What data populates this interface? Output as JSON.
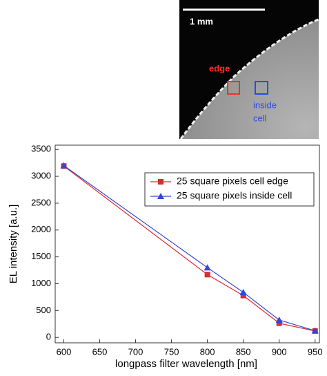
{
  "chart_data": {
    "type": "line",
    "annotations": [
      "1 mm",
      "edge",
      "inside",
      "cell"
    ],
    "x_label": "longpass filter wavelength [nm]",
    "y_label": "EL intensity [a.u.]",
    "x": [
      600,
      800,
      850,
      900,
      950
    ],
    "series": [
      {
        "name": "25 square pixels cell edge",
        "color": "#e0282d",
        "marker": "square",
        "values": [
          3190,
          1170,
          780,
          265,
          120
        ]
      },
      {
        "name": "25 square pixels inside cell",
        "color": "#3446d4",
        "marker": "triangle",
        "values": [
          3200,
          1300,
          840,
          325,
          125
        ]
      }
    ],
    "xlim": [
      588,
      956
    ],
    "ylim": [
      -100,
      3580
    ],
    "xticks": [
      600,
      650,
      700,
      750,
      800,
      850,
      900,
      950
    ],
    "yticks": [
      0,
      500,
      1000,
      1500,
      2000,
      2500,
      3000,
      3500
    ],
    "legend": "upper right"
  }
}
